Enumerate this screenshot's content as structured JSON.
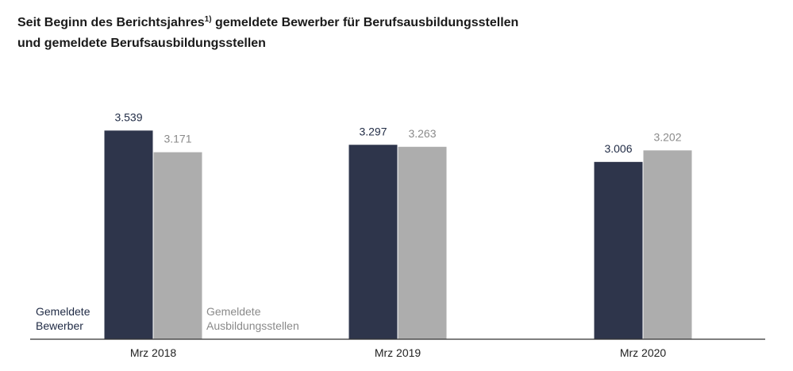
{
  "title": {
    "part1": "Seit Beginn des Berichtsjahres",
    "footnote_marker": "1)",
    "part2": " gemeldete Bewerber für Berufsausbildungsstellen",
    "line2": "und gemeldete Berufsausbildungsstellen"
  },
  "chart_data": {
    "type": "bar",
    "title": "Seit Beginn des Berichtsjahres 1) gemeldete Bewerber für Berufsausbildungsstellen und gemeldete Berufsausbildungsstellen",
    "categories": [
      "Mrz 2018",
      "Mrz 2019",
      "Mrz 2020"
    ],
    "series": [
      {
        "name": "Gemeldete Bewerber",
        "name_lines": [
          "Gemeldete",
          "Bewerber"
        ],
        "values": [
          3539,
          3297,
          3006
        ],
        "labels": [
          "3.539",
          "3.297",
          "3.006"
        ],
        "color": "#2e354b",
        "label_color": "#1f2a44"
      },
      {
        "name": "Gemeldete Ausbildungsstellen",
        "name_lines": [
          "Gemeldete",
          "Ausbildungsstellen"
        ],
        "values": [
          3171,
          3263,
          3202
        ],
        "labels": [
          "3.171",
          "3.263",
          "3.202"
        ],
        "color": "#adadad",
        "label_color": "#8a8a8a"
      }
    ],
    "xlabel": "",
    "ylabel": "",
    "ylim": [
      0,
      3800
    ],
    "grid": false,
    "legend": "inline, below first group"
  }
}
